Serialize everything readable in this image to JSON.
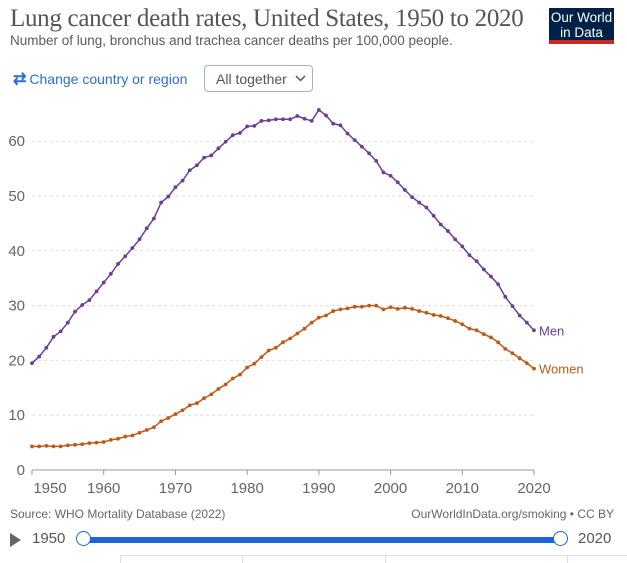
{
  "header": {
    "title": "Lung cancer death rates, United States, 1950 to 2020",
    "subtitle": "Number of lung, bronchus and trachea cancer deaths per 100,000 people.",
    "logo_line1": "Our World",
    "logo_line2": "in Data"
  },
  "controls": {
    "change_region": "Change country or region",
    "view_select": "All together"
  },
  "footer": {
    "source": "Source: WHO Mortality Database (2022)",
    "credit": "OurWorldInData.org/smoking • CC BY"
  },
  "timeline": {
    "start": "1950",
    "end": "2020"
  },
  "chart_data": {
    "type": "line",
    "title": "Lung cancer death rates, United States, 1950 to 2020",
    "xlabel": "",
    "ylabel": "",
    "xlim": [
      1950,
      2020
    ],
    "ylim": [
      0,
      65
    ],
    "xticks": [
      1950,
      1960,
      1970,
      1980,
      1990,
      2000,
      2010,
      2020
    ],
    "yticks": [
      0,
      10,
      20,
      30,
      40,
      50,
      60
    ],
    "grid": "horizontal dashed",
    "legend": "inline-end-labels",
    "x_start": 1950,
    "series": [
      {
        "name": "Men",
        "color": "#6d3e91",
        "values": [
          19.5,
          20.7,
          22.3,
          24.3,
          25.3,
          26.9,
          28.9,
          30.1,
          31.0,
          32.6,
          34.2,
          35.8,
          37.6,
          39.0,
          40.5,
          42.1,
          44.1,
          45.9,
          48.8,
          49.9,
          51.6,
          52.8,
          54.7,
          55.6,
          57.0,
          57.4,
          58.7,
          59.9,
          61.1,
          61.5,
          62.7,
          62.8,
          63.7,
          63.8,
          64.0,
          64.0,
          64.0,
          64.6,
          64.1,
          63.7,
          65.7,
          64.7,
          63.2,
          62.9,
          61.4,
          60.2,
          59.0,
          57.8,
          56.4,
          54.3,
          53.7,
          52.5,
          51.1,
          49.8,
          48.8,
          47.9,
          46.4,
          44.8,
          43.6,
          42.1,
          40.8,
          39.2,
          38.1,
          36.6,
          35.3,
          33.9,
          31.6,
          29.9,
          28.2,
          26.9,
          25.5
        ]
      },
      {
        "name": "Women",
        "color": "#c05917",
        "values": [
          4.3,
          4.3,
          4.4,
          4.3,
          4.3,
          4.5,
          4.6,
          4.7,
          4.9,
          5.0,
          5.1,
          5.5,
          5.7,
          6.1,
          6.3,
          6.8,
          7.3,
          7.8,
          8.9,
          9.5,
          10.2,
          10.9,
          11.8,
          12.2,
          13.1,
          13.8,
          14.8,
          15.6,
          16.7,
          17.4,
          18.7,
          19.4,
          20.6,
          21.8,
          22.3,
          23.3,
          24.0,
          24.9,
          25.8,
          26.9,
          27.8,
          28.2,
          29.0,
          29.3,
          29.5,
          29.8,
          29.8,
          30.0,
          30.0,
          29.3,
          29.7,
          29.4,
          29.6,
          29.4,
          29.0,
          28.7,
          28.3,
          28.1,
          27.7,
          27.2,
          26.6,
          25.8,
          25.5,
          24.8,
          24.2,
          23.3,
          22.1,
          21.3,
          20.4,
          19.5,
          18.5
        ]
      }
    ]
  }
}
